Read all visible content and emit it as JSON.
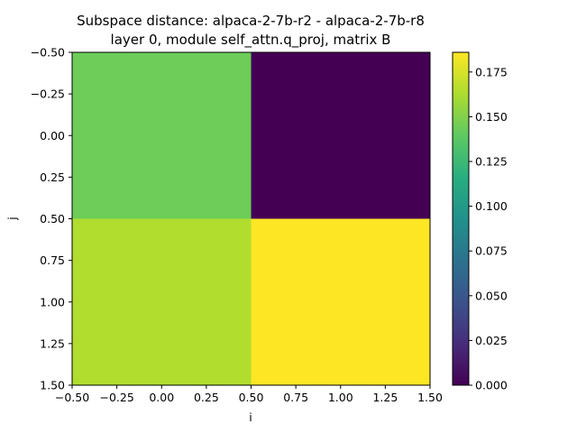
{
  "chart_data": {
    "type": "heatmap",
    "title_lines": [
      "Subspace distance: alpaca-2-7b-r2 - alpaca-2-7b-r8",
      "layer 0, module self_attn.q_proj, matrix B"
    ],
    "xlabel": "i",
    "ylabel": "j",
    "xlim": [
      -0.5,
      1.5
    ],
    "ylim": [
      1.5,
      -0.5
    ],
    "x_ticks": [
      "−0.50",
      "−0.25",
      "0.00",
      "0.25",
      "0.50",
      "0.75",
      "1.00",
      "1.25",
      "1.50"
    ],
    "y_ticks": [
      "−0.50",
      "−0.25",
      "0.00",
      "0.25",
      "0.50",
      "0.75",
      "1.00",
      "1.25",
      "1.50"
    ],
    "x_tick_values": [
      -0.5,
      -0.25,
      0.0,
      0.25,
      0.5,
      0.75,
      1.0,
      1.25,
      1.5
    ],
    "y_tick_values": [
      -0.5,
      -0.25,
      0.0,
      0.25,
      0.5,
      0.75,
      1.0,
      1.25,
      1.5
    ],
    "matrix": [
      [
        0.144,
        0.0
      ],
      [
        0.164,
        0.186
      ]
    ],
    "colormap": "viridis",
    "colorbar": {
      "min": 0.0,
      "max": 0.186,
      "tick_values": [
        0.0,
        0.025,
        0.05,
        0.075,
        0.1,
        0.125,
        0.15,
        0.175
      ],
      "tick_labels": [
        "0.000",
        "0.025",
        "0.050",
        "0.075",
        "0.100",
        "0.125",
        "0.150",
        "0.175"
      ]
    }
  }
}
